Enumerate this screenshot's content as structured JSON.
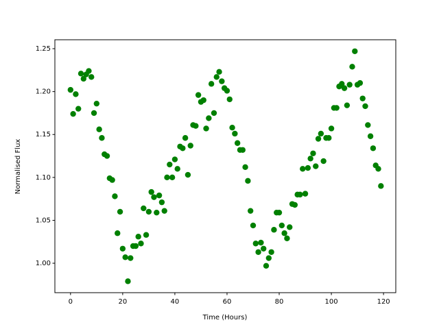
{
  "chart_data": {
    "type": "scatter",
    "x_label": "Time (Hours)",
    "y_label": "Normalised Flux",
    "x": [
      0,
      1,
      2,
      3,
      4,
      5,
      6,
      7,
      8,
      9,
      10,
      11,
      12,
      13,
      14,
      15,
      16,
      17,
      18,
      19,
      20,
      21,
      22,
      23,
      24,
      25,
      26,
      27,
      28,
      29,
      30,
      31,
      32,
      33,
      34,
      35,
      36,
      37,
      38,
      39,
      40,
      41,
      42,
      43,
      44,
      45,
      46,
      47,
      48,
      49,
      50,
      51,
      52,
      53,
      54,
      55,
      56,
      57,
      58,
      59,
      60,
      61,
      62,
      63,
      64,
      65,
      66,
      67,
      68,
      69,
      70,
      71,
      72,
      73,
      74,
      75,
      76,
      77,
      78,
      79,
      80,
      81,
      82,
      83,
      84,
      85,
      86,
      87,
      88,
      89,
      90,
      91,
      92,
      93,
      94,
      95,
      96,
      97,
      98,
      99,
      100,
      101,
      102,
      103,
      104,
      105,
      106,
      107,
      108,
      109,
      110,
      111,
      112,
      113,
      114,
      115,
      116,
      117,
      118,
      119
    ],
    "values": [
      1.202,
      1.174,
      1.197,
      1.18,
      1.221,
      1.215,
      1.22,
      1.224,
      1.217,
      1.175,
      1.186,
      1.156,
      1.146,
      1.127,
      1.125,
      1.099,
      1.097,
      1.078,
      1.035,
      1.06,
      1.017,
      1.007,
      0.979,
      1.006,
      1.02,
      1.02,
      1.031,
      1.023,
      1.064,
      1.033,
      1.06,
      1.083,
      1.077,
      1.059,
      1.079,
      1.071,
      1.061,
      1.1,
      1.115,
      1.1,
      1.121,
      1.11,
      1.136,
      1.134,
      1.146,
      1.103,
      1.137,
      1.161,
      1.16,
      1.196,
      1.188,
      1.19,
      1.157,
      1.169,
      1.209,
      1.175,
      1.217,
      1.223,
      1.212,
      1.204,
      1.201,
      1.191,
      1.158,
      1.151,
      1.14,
      1.132,
      1.132,
      1.112,
      1.096,
      1.061,
      1.044,
      1.023,
      1.013,
      1.024,
      1.017,
      0.997,
      1.006,
      1.013,
      1.039,
      1.059,
      1.059,
      1.044,
      1.035,
      1.029,
      1.042,
      1.069,
      1.068,
      1.08,
      1.08,
      1.11,
      1.081,
      1.111,
      1.122,
      1.128,
      1.113,
      1.145,
      1.151,
      1.119,
      1.146,
      1.146,
      1.157,
      1.181,
      1.181,
      1.206,
      1.209,
      1.204,
      1.184,
      1.208,
      1.229,
      1.247,
      1.208,
      1.21,
      1.192,
      1.183,
      1.161,
      1.148,
      1.134,
      1.114,
      1.11,
      1.09
    ],
    "color": "#008000",
    "xlim": [
      -6,
      124.7
    ],
    "xticks": [
      0,
      20,
      40,
      60,
      80,
      100,
      120
    ],
    "ylim": [
      0.9657,
      1.2604
    ],
    "yticks": [
      {
        "value": 1.0,
        "label": "1.00"
      },
      {
        "value": 1.05,
        "label": "1.05"
      },
      {
        "value": 1.1,
        "label": "1.10"
      },
      {
        "value": 1.15,
        "label": "1.15"
      },
      {
        "value": 1.2,
        "label": "1.20"
      },
      {
        "value": 1.25,
        "label": "1.25"
      }
    ]
  }
}
